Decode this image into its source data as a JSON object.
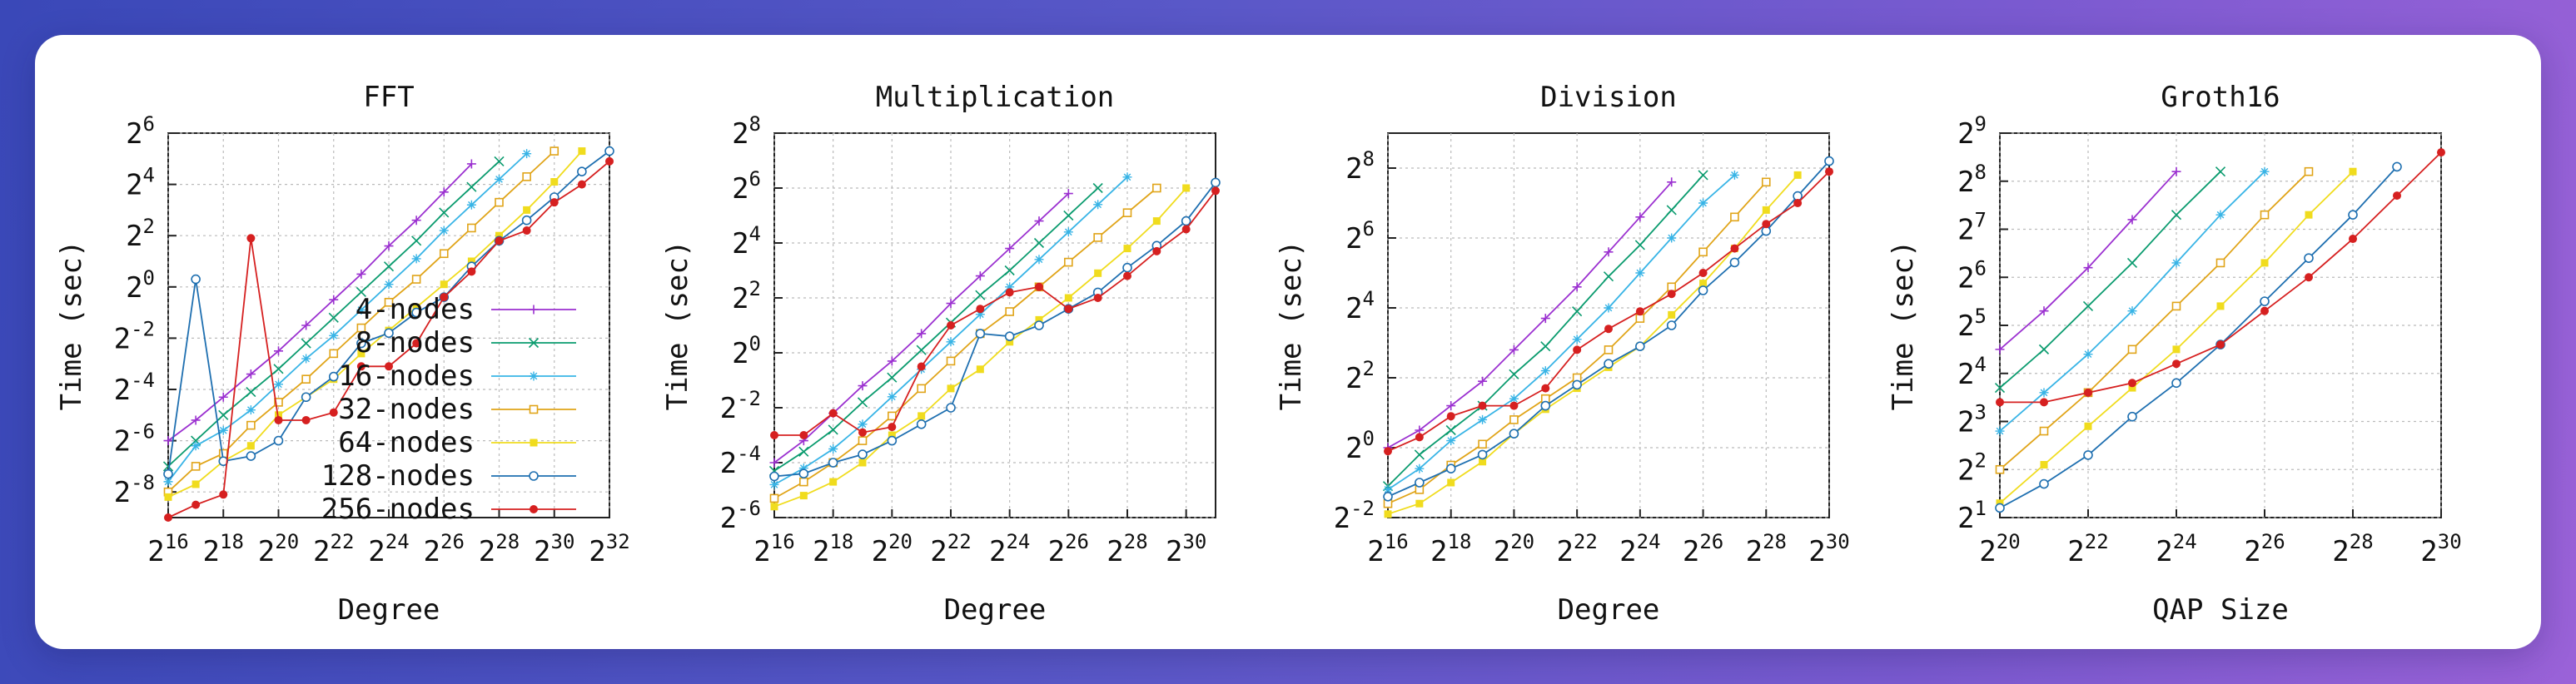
{
  "background": {
    "gradient_start": "#3a48b8",
    "gradient_end": "#9a62d8",
    "card": "#ffffff"
  },
  "series_styles": [
    {
      "name": "4-nodes",
      "color": "#9b30d0",
      "marker": "plus"
    },
    {
      "name": "8-nodes",
      "color": "#0a9b6e",
      "marker": "cross"
    },
    {
      "name": "16-nodes",
      "color": "#38b4e6",
      "marker": "star"
    },
    {
      "name": "32-nodes",
      "color": "#e0a418",
      "marker": "open-square"
    },
    {
      "name": "64-nodes",
      "color": "#f0dc1e",
      "marker": "filled-square"
    },
    {
      "name": "128-nodes",
      "color": "#1e6fb0",
      "marker": "open-circle"
    },
    {
      "name": "256-nodes",
      "color": "#d62020",
      "marker": "filled-circle"
    }
  ],
  "chart_data": [
    {
      "type": "line",
      "title": "FFT",
      "xlabel": "Degree",
      "ylabel": "Time (sec)",
      "x_scale": "log2",
      "y_scale": "log2",
      "xlim": [
        16,
        32
      ],
      "ylim": [
        -9,
        6
      ],
      "x_tick_labels": [
        "2^16",
        "2^18",
        "2^20",
        "2^22",
        "2^24",
        "2^26",
        "2^28",
        "2^30",
        "2^32"
      ],
      "y_tick_labels": [
        "2^-8",
        "2^-6",
        "2^-4",
        "2^-2",
        "2^0",
        "2^2",
        "2^4",
        "2^6"
      ],
      "grid": true,
      "legend": "inside-bottom-center",
      "series": [
        {
          "name": "4-nodes",
          "x": [
            16,
            17,
            18,
            19,
            20,
            21,
            22,
            23,
            24,
            25,
            26,
            27
          ],
          "y": [
            -6.0,
            -5.2,
            -4.3,
            -3.4,
            -2.5,
            -1.5,
            -0.5,
            0.5,
            1.6,
            2.6,
            3.7,
            4.8
          ]
        },
        {
          "name": "8-nodes",
          "x": [
            16,
            17,
            18,
            19,
            20,
            21,
            22,
            23,
            24,
            25,
            26,
            27,
            28
          ],
          "y": [
            -7.0,
            -6.0,
            -5.0,
            -4.1,
            -3.2,
            -2.2,
            -1.2,
            -0.2,
            0.8,
            1.8,
            2.9,
            3.9,
            4.9
          ]
        },
        {
          "name": "16-nodes",
          "x": [
            16,
            17,
            18,
            19,
            20,
            21,
            22,
            23,
            24,
            25,
            26,
            27,
            28,
            29
          ],
          "y": [
            -7.6,
            -6.2,
            -5.6,
            -4.8,
            -3.8,
            -2.8,
            -1.9,
            -0.9,
            0.1,
            1.1,
            2.2,
            3.2,
            4.2,
            5.2
          ]
        },
        {
          "name": "32-nodes",
          "x": [
            16,
            17,
            18,
            19,
            20,
            21,
            22,
            23,
            24,
            25,
            26,
            27,
            28,
            29,
            30
          ],
          "y": [
            -8.0,
            -7.0,
            -6.5,
            -5.4,
            -4.5,
            -3.6,
            -2.6,
            -1.6,
            -0.6,
            0.3,
            1.3,
            2.3,
            3.3,
            4.3,
            5.3
          ]
        },
        {
          "name": "64-nodes",
          "x": [
            16,
            17,
            18,
            19,
            20,
            21,
            22,
            23,
            24,
            25,
            26,
            27,
            28,
            29,
            30,
            31
          ],
          "y": [
            -8.2,
            -7.7,
            -6.8,
            -6.2,
            -5.0,
            -4.3,
            -3.6,
            -2.6,
            -1.7,
            -0.8,
            0.1,
            1.0,
            2.0,
            3.0,
            4.1,
            5.3
          ]
        },
        {
          "name": "128-nodes",
          "x": [
            16,
            17,
            18,
            19,
            20,
            21,
            22,
            23,
            24,
            25,
            26,
            27,
            28,
            29,
            30,
            31,
            32
          ],
          "y": [
            -7.3,
            0.3,
            -6.8,
            -6.6,
            -6.0,
            -4.3,
            -3.5,
            -2.2,
            -1.8,
            -1.0,
            -0.4,
            0.8,
            1.8,
            2.6,
            3.5,
            4.5,
            5.3
          ]
        },
        {
          "name": "256-nodes",
          "x": [
            16,
            17,
            18,
            19,
            20,
            21,
            22,
            23,
            24,
            25,
            26,
            27,
            28,
            29,
            30,
            31,
            32
          ],
          "y": [
            -9.0,
            -8.5,
            -8.1,
            1.9,
            -5.2,
            -5.2,
            -4.9,
            -3.1,
            -3.1,
            -2.2,
            -0.4,
            0.6,
            1.8,
            2.2,
            3.3,
            4.0,
            4.9
          ]
        }
      ]
    },
    {
      "type": "line",
      "title": "Multiplication",
      "xlabel": "Degree",
      "ylabel": "Time (sec)",
      "x_scale": "log2",
      "y_scale": "log2",
      "xlim": [
        16,
        31
      ],
      "ylim": [
        -6,
        8
      ],
      "x_tick_labels": [
        "2^16",
        "2^18",
        "2^20",
        "2^22",
        "2^24",
        "2^26",
        "2^28",
        "2^30"
      ],
      "y_tick_labels": [
        "2^-6",
        "2^-4",
        "2^-2",
        "2^0",
        "2^2",
        "2^4",
        "2^6",
        "2^8"
      ],
      "grid": true,
      "series": [
        {
          "name": "4-nodes",
          "x": [
            16,
            17,
            18,
            19,
            20,
            21,
            22,
            23,
            24,
            25,
            26
          ],
          "y": [
            -4.0,
            -3.2,
            -2.2,
            -1.2,
            -0.3,
            0.7,
            1.8,
            2.8,
            3.8,
            4.8,
            5.8
          ]
        },
        {
          "name": "8-nodes",
          "x": [
            16,
            17,
            18,
            19,
            20,
            21,
            22,
            23,
            24,
            25,
            26,
            27
          ],
          "y": [
            -4.3,
            -3.6,
            -2.8,
            -1.8,
            -0.9,
            0.1,
            1.1,
            2.1,
            3.0,
            4.0,
            5.0,
            6.0
          ]
        },
        {
          "name": "16-nodes",
          "x": [
            16,
            17,
            18,
            19,
            20,
            21,
            22,
            23,
            24,
            25,
            26,
            27,
            28
          ],
          "y": [
            -4.8,
            -4.2,
            -3.5,
            -2.6,
            -1.6,
            -0.6,
            0.4,
            1.4,
            2.4,
            3.4,
            4.4,
            5.4,
            6.4
          ]
        },
        {
          "name": "32-nodes",
          "x": [
            16,
            17,
            18,
            19,
            20,
            21,
            22,
            23,
            24,
            25,
            26,
            27,
            28,
            29
          ],
          "y": [
            -5.3,
            -4.7,
            -4.0,
            -3.2,
            -2.3,
            -1.3,
            -0.3,
            0.7,
            1.5,
            2.4,
            3.3,
            4.2,
            5.1,
            6.0
          ]
        },
        {
          "name": "64-nodes",
          "x": [
            16,
            17,
            18,
            19,
            20,
            21,
            22,
            23,
            24,
            25,
            26,
            27,
            28,
            29,
            30
          ],
          "y": [
            -5.6,
            -5.2,
            -4.7,
            -4.0,
            -3.0,
            -2.3,
            -1.3,
            -0.6,
            0.4,
            1.2,
            2.0,
            2.9,
            3.8,
            4.8,
            6.0
          ]
        },
        {
          "name": "128-nodes",
          "x": [
            16,
            17,
            18,
            19,
            20,
            21,
            22,
            23,
            24,
            25,
            26,
            27,
            28,
            29,
            30,
            31
          ],
          "y": [
            -4.5,
            -4.4,
            -4.0,
            -3.7,
            -3.2,
            -2.6,
            -2.0,
            0.7,
            0.6,
            1.0,
            1.6,
            2.2,
            3.1,
            3.9,
            4.8,
            6.2
          ]
        },
        {
          "name": "256-nodes",
          "x": [
            16,
            17,
            18,
            19,
            20,
            21,
            22,
            23,
            24,
            25,
            26,
            27,
            28,
            29,
            30,
            31
          ],
          "y": [
            -3.0,
            -3.0,
            -2.2,
            -2.9,
            -2.7,
            -0.5,
            1.0,
            1.6,
            2.2,
            2.4,
            1.6,
            2.0,
            2.8,
            3.7,
            4.5,
            5.9
          ]
        }
      ]
    },
    {
      "type": "line",
      "title": "Division",
      "xlabel": "Degree",
      "ylabel": "Time (sec)",
      "x_scale": "log2",
      "y_scale": "log2",
      "xlim": [
        16,
        30
      ],
      "ylim": [
        -2,
        9
      ],
      "x_tick_labels": [
        "2^16",
        "2^18",
        "2^20",
        "2^22",
        "2^24",
        "2^26",
        "2^28",
        "2^30"
      ],
      "y_tick_labels": [
        "2^-2",
        "2^0",
        "2^2",
        "2^4",
        "2^6",
        "2^8"
      ],
      "grid": true,
      "series": [
        {
          "name": "4-nodes",
          "x": [
            16,
            17,
            18,
            19,
            20,
            21,
            22,
            23,
            24,
            25
          ],
          "y": [
            0.0,
            0.5,
            1.2,
            1.9,
            2.8,
            3.7,
            4.6,
            5.6,
            6.6,
            7.6
          ]
        },
        {
          "name": "8-nodes",
          "x": [
            16,
            17,
            18,
            19,
            20,
            21,
            22,
            23,
            24,
            25,
            26
          ],
          "y": [
            -1.1,
            -0.2,
            0.5,
            1.2,
            2.1,
            2.9,
            3.9,
            4.9,
            5.8,
            6.8,
            7.8
          ]
        },
        {
          "name": "16-nodes",
          "x": [
            16,
            17,
            18,
            19,
            20,
            21,
            22,
            23,
            24,
            25,
            26,
            27
          ],
          "y": [
            -1.2,
            -0.6,
            0.2,
            0.8,
            1.4,
            2.2,
            3.1,
            4.0,
            5.0,
            6.0,
            7.0,
            7.8
          ]
        },
        {
          "name": "32-nodes",
          "x": [
            16,
            17,
            18,
            19,
            20,
            21,
            22,
            23,
            24,
            25,
            26,
            27,
            28
          ],
          "y": [
            -1.6,
            -1.2,
            -0.5,
            0.1,
            0.8,
            1.4,
            2.0,
            2.8,
            3.7,
            4.6,
            5.6,
            6.6,
            7.6
          ]
        },
        {
          "name": "64-nodes",
          "x": [
            16,
            17,
            18,
            19,
            20,
            21,
            22,
            23,
            24,
            25,
            26,
            27,
            28,
            29
          ],
          "y": [
            -1.9,
            -1.6,
            -1.0,
            -0.4,
            0.4,
            1.1,
            1.7,
            2.3,
            2.9,
            3.8,
            4.7,
            5.7,
            6.8,
            7.8
          ]
        },
        {
          "name": "128-nodes",
          "x": [
            16,
            17,
            18,
            19,
            20,
            21,
            22,
            23,
            24,
            25,
            26,
            27,
            28,
            29,
            30
          ],
          "y": [
            -1.4,
            -1.0,
            -0.6,
            -0.2,
            0.4,
            1.2,
            1.8,
            2.4,
            2.9,
            3.5,
            4.5,
            5.3,
            6.2,
            7.2,
            8.2
          ]
        },
        {
          "name": "256-nodes",
          "x": [
            16,
            17,
            18,
            19,
            20,
            21,
            22,
            23,
            24,
            25,
            26,
            27,
            28,
            29,
            30
          ],
          "y": [
            -0.1,
            0.3,
            0.9,
            1.2,
            1.2,
            1.7,
            2.8,
            3.4,
            3.9,
            4.4,
            5.0,
            5.7,
            6.4,
            7.0,
            7.9
          ]
        }
      ]
    },
    {
      "type": "line",
      "title": "Groth16",
      "xlabel": "QAP Size",
      "ylabel": "Time (sec)",
      "x_scale": "log2",
      "y_scale": "log2",
      "xlim": [
        20,
        30
      ],
      "ylim": [
        1,
        9
      ],
      "x_tick_labels": [
        "2^20",
        "2^22",
        "2^24",
        "2^26",
        "2^28",
        "2^30"
      ],
      "y_tick_labels": [
        "2^1",
        "2^2",
        "2^3",
        "2^4",
        "2^5",
        "2^6",
        "2^7",
        "2^8",
        "2^9"
      ],
      "grid": true,
      "series": [
        {
          "name": "4-nodes",
          "x": [
            20,
            21,
            22,
            23,
            24
          ],
          "y": [
            4.5,
            5.3,
            6.2,
            7.2,
            8.2
          ]
        },
        {
          "name": "8-nodes",
          "x": [
            20,
            21,
            22,
            23,
            24,
            25
          ],
          "y": [
            3.7,
            4.5,
            5.4,
            6.3,
            7.3,
            8.2
          ]
        },
        {
          "name": "16-nodes",
          "x": [
            20,
            21,
            22,
            23,
            24,
            25,
            26
          ],
          "y": [
            2.8,
            3.6,
            4.4,
            5.3,
            6.3,
            7.3,
            8.2
          ]
        },
        {
          "name": "32-nodes",
          "x": [
            20,
            21,
            22,
            23,
            24,
            25,
            26,
            27
          ],
          "y": [
            2.0,
            2.8,
            3.6,
            4.5,
            5.4,
            6.3,
            7.3,
            8.2
          ]
        },
        {
          "name": "64-nodes",
          "x": [
            20,
            21,
            22,
            23,
            24,
            25,
            26,
            27,
            28
          ],
          "y": [
            1.3,
            2.1,
            2.9,
            3.7,
            4.5,
            5.4,
            6.3,
            7.3,
            8.2
          ]
        },
        {
          "name": "128-nodes",
          "x": [
            20,
            21,
            22,
            23,
            24,
            25,
            26,
            27,
            28,
            29
          ],
          "y": [
            1.2,
            1.7,
            2.3,
            3.1,
            3.8,
            4.6,
            5.5,
            6.4,
            7.3,
            8.3
          ]
        },
        {
          "name": "256-nodes",
          "x": [
            20,
            21,
            22,
            23,
            24,
            25,
            26,
            27,
            28,
            29,
            30
          ],
          "y": [
            3.4,
            3.4,
            3.6,
            3.8,
            4.2,
            4.6,
            5.3,
            6.0,
            6.8,
            7.7,
            8.6
          ]
        }
      ]
    }
  ]
}
